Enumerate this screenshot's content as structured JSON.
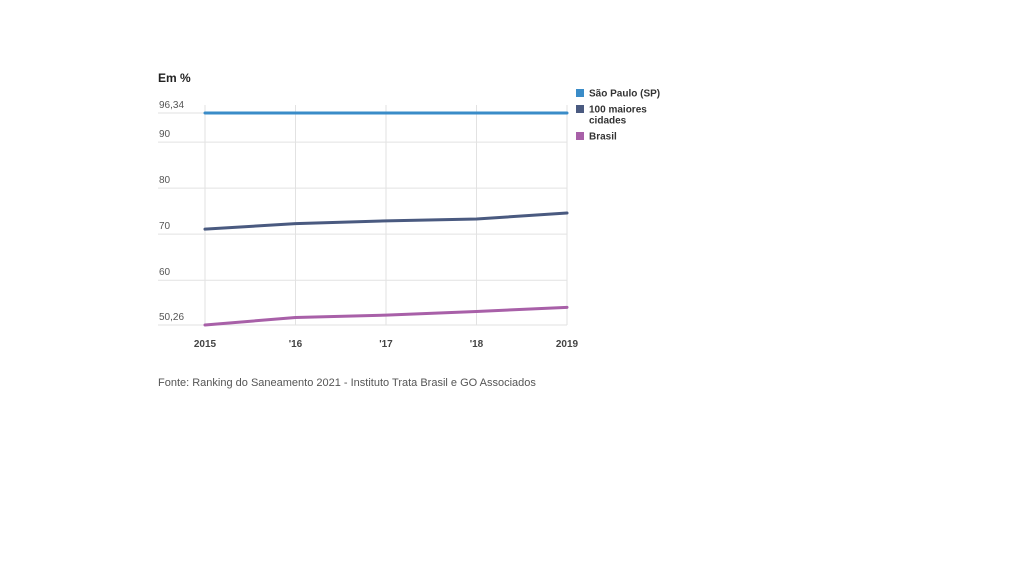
{
  "chart_data": {
    "type": "line",
    "unit_label": "Em %",
    "x": [
      "2015",
      "'16",
      "'17",
      "'18",
      "2019"
    ],
    "y_ticks": [
      "96,34",
      "90",
      "80",
      "70",
      "60",
      "50,26"
    ],
    "y_tick_values": [
      96.34,
      90,
      80,
      70,
      60,
      50.26
    ],
    "ylim": [
      50.26,
      96.34
    ],
    "grid": true,
    "legend_position": "right",
    "series": [
      {
        "name": "São Paulo (SP)",
        "values": [
          96.34,
          96.34,
          96.34,
          96.34,
          96.34
        ],
        "color": "#3a8cc8"
      },
      {
        "name": "100 maiores cidades",
        "legend_lines": [
          "100 maiores",
          "cidades"
        ],
        "values": [
          71.1,
          72.3,
          72.9,
          73.3,
          74.6
        ],
        "color": "#4a5a80"
      },
      {
        "name": "Brasil",
        "values": [
          50.26,
          51.9,
          52.4,
          53.2,
          54.1
        ],
        "color": "#a860a8"
      }
    ],
    "source": "Fonte: Ranking do Saneamento 2021 - Instituto Trata Brasil e GO Associados"
  }
}
